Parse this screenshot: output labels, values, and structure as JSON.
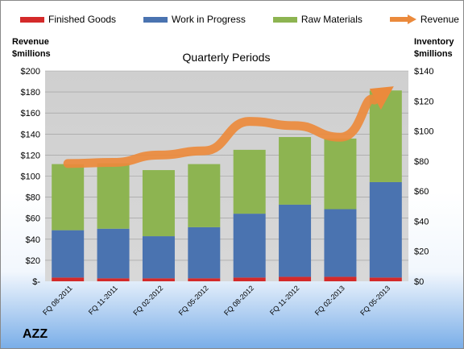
{
  "chart_data": {
    "type": "bar",
    "stacked": true,
    "subtitle": "Quarterly Periods",
    "brand": "AZZ",
    "ylabel_left": [
      "Revenue",
      "$millions"
    ],
    "ylabel_right": [
      "Inventory",
      "$millions"
    ],
    "categories": [
      "FQ 08-2011",
      "FQ 11-2011",
      "FQ 02-2012",
      "FQ 05-2012",
      "FQ 08-2012",
      "FQ 11-2012",
      "FQ 02-2013",
      "FQ 05-2013"
    ],
    "series": [
      {
        "name": "Finished Goods",
        "color": "#d42a2a",
        "axis": "right",
        "values": [
          2.5,
          2.0,
          2.0,
          2.0,
          2.5,
          3.0,
          3.0,
          2.5
        ]
      },
      {
        "name": "Work in Progress",
        "color": "#4a73b0",
        "axis": "right",
        "values": [
          31.5,
          33.0,
          28.0,
          34.0,
          42.5,
          48.0,
          45.0,
          63.5
        ]
      },
      {
        "name": "Raw Materials",
        "color": "#8db451",
        "axis": "right",
        "values": [
          44.0,
          43.5,
          44.0,
          42.0,
          42.5,
          45.0,
          47.0,
          61.0
        ]
      },
      {
        "name": "Revenue",
        "color": "#eb8a3c",
        "axis": "left",
        "type": "line",
        "values": [
          112,
          113,
          120,
          124,
          152,
          148,
          137,
          180
        ]
      }
    ],
    "y_left": {
      "min": 0,
      "max": 200,
      "step": 20,
      "ticks": [
        "$-",
        "$20",
        "$40",
        "$60",
        "$80",
        "$100",
        "$120",
        "$140",
        "$160",
        "$180",
        "$200"
      ]
    },
    "y_right": {
      "min": 0,
      "max": 140,
      "step": 20,
      "ticks": [
        "$0",
        "$20",
        "$40",
        "$60",
        "$80",
        "$100",
        "$120",
        "$140"
      ]
    },
    "grid": "horizontal",
    "legend": "top"
  }
}
